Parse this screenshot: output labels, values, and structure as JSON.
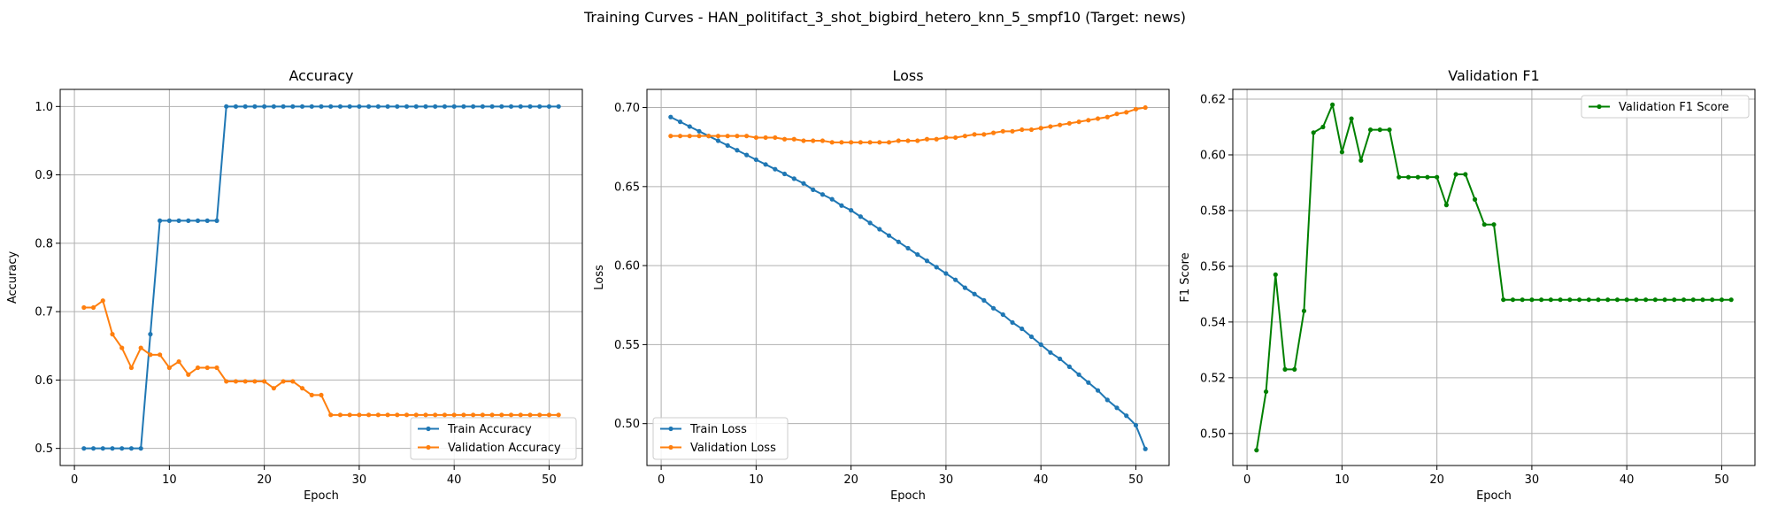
{
  "figure": {
    "suptitle": "Training Curves - HAN_politifact_3_shot_bigbird_hetero_knn_5_smpf10 (Target: news)"
  },
  "colors": {
    "blue": "#1f77b4",
    "orange": "#ff7f0e",
    "green": "#008000",
    "grid": "#b0b0b0"
  },
  "chart_data": [
    {
      "type": "line",
      "title": "Accuracy",
      "xlabel": "Epoch",
      "ylabel": "Accuracy",
      "xlim": [
        -1.5,
        53.5
      ],
      "ylim": [
        0.475,
        1.025
      ],
      "xticks": [
        0,
        10,
        20,
        30,
        40,
        50
      ],
      "yticks": [
        0.5,
        0.6,
        0.7,
        0.8,
        0.9,
        1.0
      ],
      "ytick_labels": [
        "0.5",
        "0.6",
        "0.7",
        "0.8",
        "0.9",
        "1.0"
      ],
      "grid": true,
      "legend": "lower right",
      "series": [
        {
          "name": "Train Accuracy",
          "color": "#1f77b4",
          "x": [
            1,
            2,
            3,
            4,
            5,
            6,
            7,
            8,
            9,
            10,
            11,
            12,
            13,
            14,
            15,
            16,
            17,
            18,
            19,
            20,
            21,
            22,
            23,
            24,
            25,
            26,
            27,
            28,
            29,
            30,
            31,
            32,
            33,
            34,
            35,
            36,
            37,
            38,
            39,
            40,
            41,
            42,
            43,
            44,
            45,
            46,
            47,
            48,
            49,
            50,
            51
          ],
          "y": [
            0.5,
            0.5,
            0.5,
            0.5,
            0.5,
            0.5,
            0.5,
            0.667,
            0.833,
            0.833,
            0.833,
            0.833,
            0.833,
            0.833,
            0.833,
            1.0,
            1.0,
            1.0,
            1.0,
            1.0,
            1.0,
            1.0,
            1.0,
            1.0,
            1.0,
            1.0,
            1.0,
            1.0,
            1.0,
            1.0,
            1.0,
            1.0,
            1.0,
            1.0,
            1.0,
            1.0,
            1.0,
            1.0,
            1.0,
            1.0,
            1.0,
            1.0,
            1.0,
            1.0,
            1.0,
            1.0,
            1.0,
            1.0,
            1.0,
            1.0,
            1.0
          ]
        },
        {
          "name": "Validation Accuracy",
          "color": "#ff7f0e",
          "x": [
            1,
            2,
            3,
            4,
            5,
            6,
            7,
            8,
            9,
            10,
            11,
            12,
            13,
            14,
            15,
            16,
            17,
            18,
            19,
            20,
            21,
            22,
            23,
            24,
            25,
            26,
            27,
            28,
            29,
            30,
            31,
            32,
            33,
            34,
            35,
            36,
            37,
            38,
            39,
            40,
            41,
            42,
            43,
            44,
            45,
            46,
            47,
            48,
            49,
            50,
            51
          ],
          "y": [
            0.706,
            0.706,
            0.716,
            0.667,
            0.647,
            0.618,
            0.647,
            0.637,
            0.637,
            0.618,
            0.627,
            0.608,
            0.618,
            0.618,
            0.618,
            0.598,
            0.598,
            0.598,
            0.598,
            0.598,
            0.588,
            0.598,
            0.598,
            0.588,
            0.578,
            0.578,
            0.549,
            0.549,
            0.549,
            0.549,
            0.549,
            0.549,
            0.549,
            0.549,
            0.549,
            0.549,
            0.549,
            0.549,
            0.549,
            0.549,
            0.549,
            0.549,
            0.549,
            0.549,
            0.549,
            0.549,
            0.549,
            0.549,
            0.549,
            0.549,
            0.549
          ]
        }
      ]
    },
    {
      "type": "line",
      "title": "Loss",
      "xlabel": "Epoch",
      "ylabel": "Loss",
      "xlim": [
        -1.5,
        53.5
      ],
      "ylim": [
        0.4735,
        0.7115
      ],
      "xticks": [
        0,
        10,
        20,
        30,
        40,
        50
      ],
      "yticks": [
        0.5,
        0.55,
        0.6,
        0.65,
        0.7
      ],
      "ytick_labels": [
        "0.50",
        "0.55",
        "0.60",
        "0.65",
        "0.70"
      ],
      "grid": true,
      "legend": "lower left",
      "series": [
        {
          "name": "Train Loss",
          "color": "#1f77b4",
          "x": [
            1,
            2,
            3,
            4,
            5,
            6,
            7,
            8,
            9,
            10,
            11,
            12,
            13,
            14,
            15,
            16,
            17,
            18,
            19,
            20,
            21,
            22,
            23,
            24,
            25,
            26,
            27,
            28,
            29,
            30,
            31,
            32,
            33,
            34,
            35,
            36,
            37,
            38,
            39,
            40,
            41,
            42,
            43,
            44,
            45,
            46,
            47,
            48,
            49,
            50,
            51
          ],
          "y": [
            0.694,
            0.691,
            0.688,
            0.685,
            0.682,
            0.679,
            0.676,
            0.673,
            0.67,
            0.667,
            0.664,
            0.661,
            0.658,
            0.655,
            0.652,
            0.648,
            0.645,
            0.642,
            0.638,
            0.635,
            0.631,
            0.627,
            0.623,
            0.619,
            0.615,
            0.611,
            0.607,
            0.603,
            0.599,
            0.595,
            0.591,
            0.586,
            0.582,
            0.578,
            0.573,
            0.569,
            0.564,
            0.56,
            0.555,
            0.55,
            0.545,
            0.541,
            0.536,
            0.531,
            0.526,
            0.521,
            0.515,
            0.51,
            0.505,
            0.499,
            0.484
          ]
        },
        {
          "name": "Validation Loss",
          "color": "#ff7f0e",
          "x": [
            1,
            2,
            3,
            4,
            5,
            6,
            7,
            8,
            9,
            10,
            11,
            12,
            13,
            14,
            15,
            16,
            17,
            18,
            19,
            20,
            21,
            22,
            23,
            24,
            25,
            26,
            27,
            28,
            29,
            30,
            31,
            32,
            33,
            34,
            35,
            36,
            37,
            38,
            39,
            40,
            41,
            42,
            43,
            44,
            45,
            46,
            47,
            48,
            49,
            50,
            51
          ],
          "y": [
            0.682,
            0.682,
            0.682,
            0.682,
            0.682,
            0.682,
            0.682,
            0.682,
            0.682,
            0.681,
            0.681,
            0.681,
            0.68,
            0.68,
            0.679,
            0.679,
            0.679,
            0.678,
            0.678,
            0.678,
            0.678,
            0.678,
            0.678,
            0.678,
            0.679,
            0.679,
            0.679,
            0.68,
            0.68,
            0.681,
            0.681,
            0.682,
            0.683,
            0.683,
            0.684,
            0.685,
            0.685,
            0.686,
            0.686,
            0.687,
            0.688,
            0.689,
            0.69,
            0.691,
            0.692,
            0.693,
            0.694,
            0.696,
            0.697,
            0.699,
            0.7
          ]
        }
      ]
    },
    {
      "type": "line",
      "title": "Validation F1",
      "xlabel": "Epoch",
      "ylabel": "F1 Score",
      "xlim": [
        -1.5,
        53.5
      ],
      "ylim": [
        0.4885,
        0.6235
      ],
      "xticks": [
        0,
        10,
        20,
        30,
        40,
        50
      ],
      "yticks": [
        0.5,
        0.52,
        0.54,
        0.56,
        0.58,
        0.6,
        0.62
      ],
      "ytick_labels": [
        "0.50",
        "0.52",
        "0.54",
        "0.56",
        "0.58",
        "0.60",
        "0.62"
      ],
      "grid": true,
      "legend": "upper right",
      "series": [
        {
          "name": "Validation F1 Score",
          "color": "#008000",
          "x": [
            1,
            2,
            3,
            4,
            5,
            6,
            7,
            8,
            9,
            10,
            11,
            12,
            13,
            14,
            15,
            16,
            17,
            18,
            19,
            20,
            21,
            22,
            23,
            24,
            25,
            26,
            27,
            28,
            29,
            30,
            31,
            32,
            33,
            34,
            35,
            36,
            37,
            38,
            39,
            40,
            41,
            42,
            43,
            44,
            45,
            46,
            47,
            48,
            49,
            50,
            51
          ],
          "y": [
            0.494,
            0.515,
            0.557,
            0.523,
            0.523,
            0.544,
            0.608,
            0.61,
            0.618,
            0.601,
            0.613,
            0.598,
            0.609,
            0.609,
            0.609,
            0.592,
            0.592,
            0.592,
            0.592,
            0.592,
            0.582,
            0.593,
            0.593,
            0.584,
            0.575,
            0.575,
            0.548,
            0.548,
            0.548,
            0.548,
            0.548,
            0.548,
            0.548,
            0.548,
            0.548,
            0.548,
            0.548,
            0.548,
            0.548,
            0.548,
            0.548,
            0.548,
            0.548,
            0.548,
            0.548,
            0.548,
            0.548,
            0.548,
            0.548,
            0.548,
            0.548
          ]
        }
      ]
    }
  ]
}
